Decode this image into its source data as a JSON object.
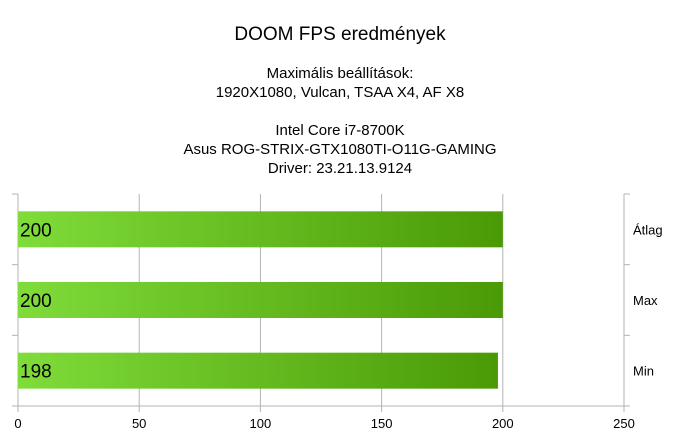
{
  "chart_data": {
    "type": "bar",
    "orientation": "horizontal",
    "title": "DOOM FPS eredmények",
    "subtitle_lines": [
      "Maximális beállítások:",
      "1920X1080, Vulcan, TSAA X4, AF X8",
      "",
      "Intel Core i7-8700K",
      "Asus ROG-STRIX-GTX1080TI-O11G-GAMING",
      "Driver: 23.21.13.9124"
    ],
    "categories": [
      "Átlag",
      "Max",
      "Min"
    ],
    "values": [
      200,
      200,
      198
    ],
    "data_labels": [
      "200",
      "200",
      "198"
    ],
    "xlim": [
      0,
      250
    ],
    "x_ticks": [
      "0",
      "50",
      "100",
      "150",
      "200",
      "250"
    ],
    "category_axis_position": "right",
    "grid": true,
    "legend": "none",
    "colors": {
      "bar_light": "#7fdc3a",
      "bar_dark": "#4a9a06",
      "grid": "#b3b3b3",
      "axis": "#b3b3b3"
    }
  }
}
